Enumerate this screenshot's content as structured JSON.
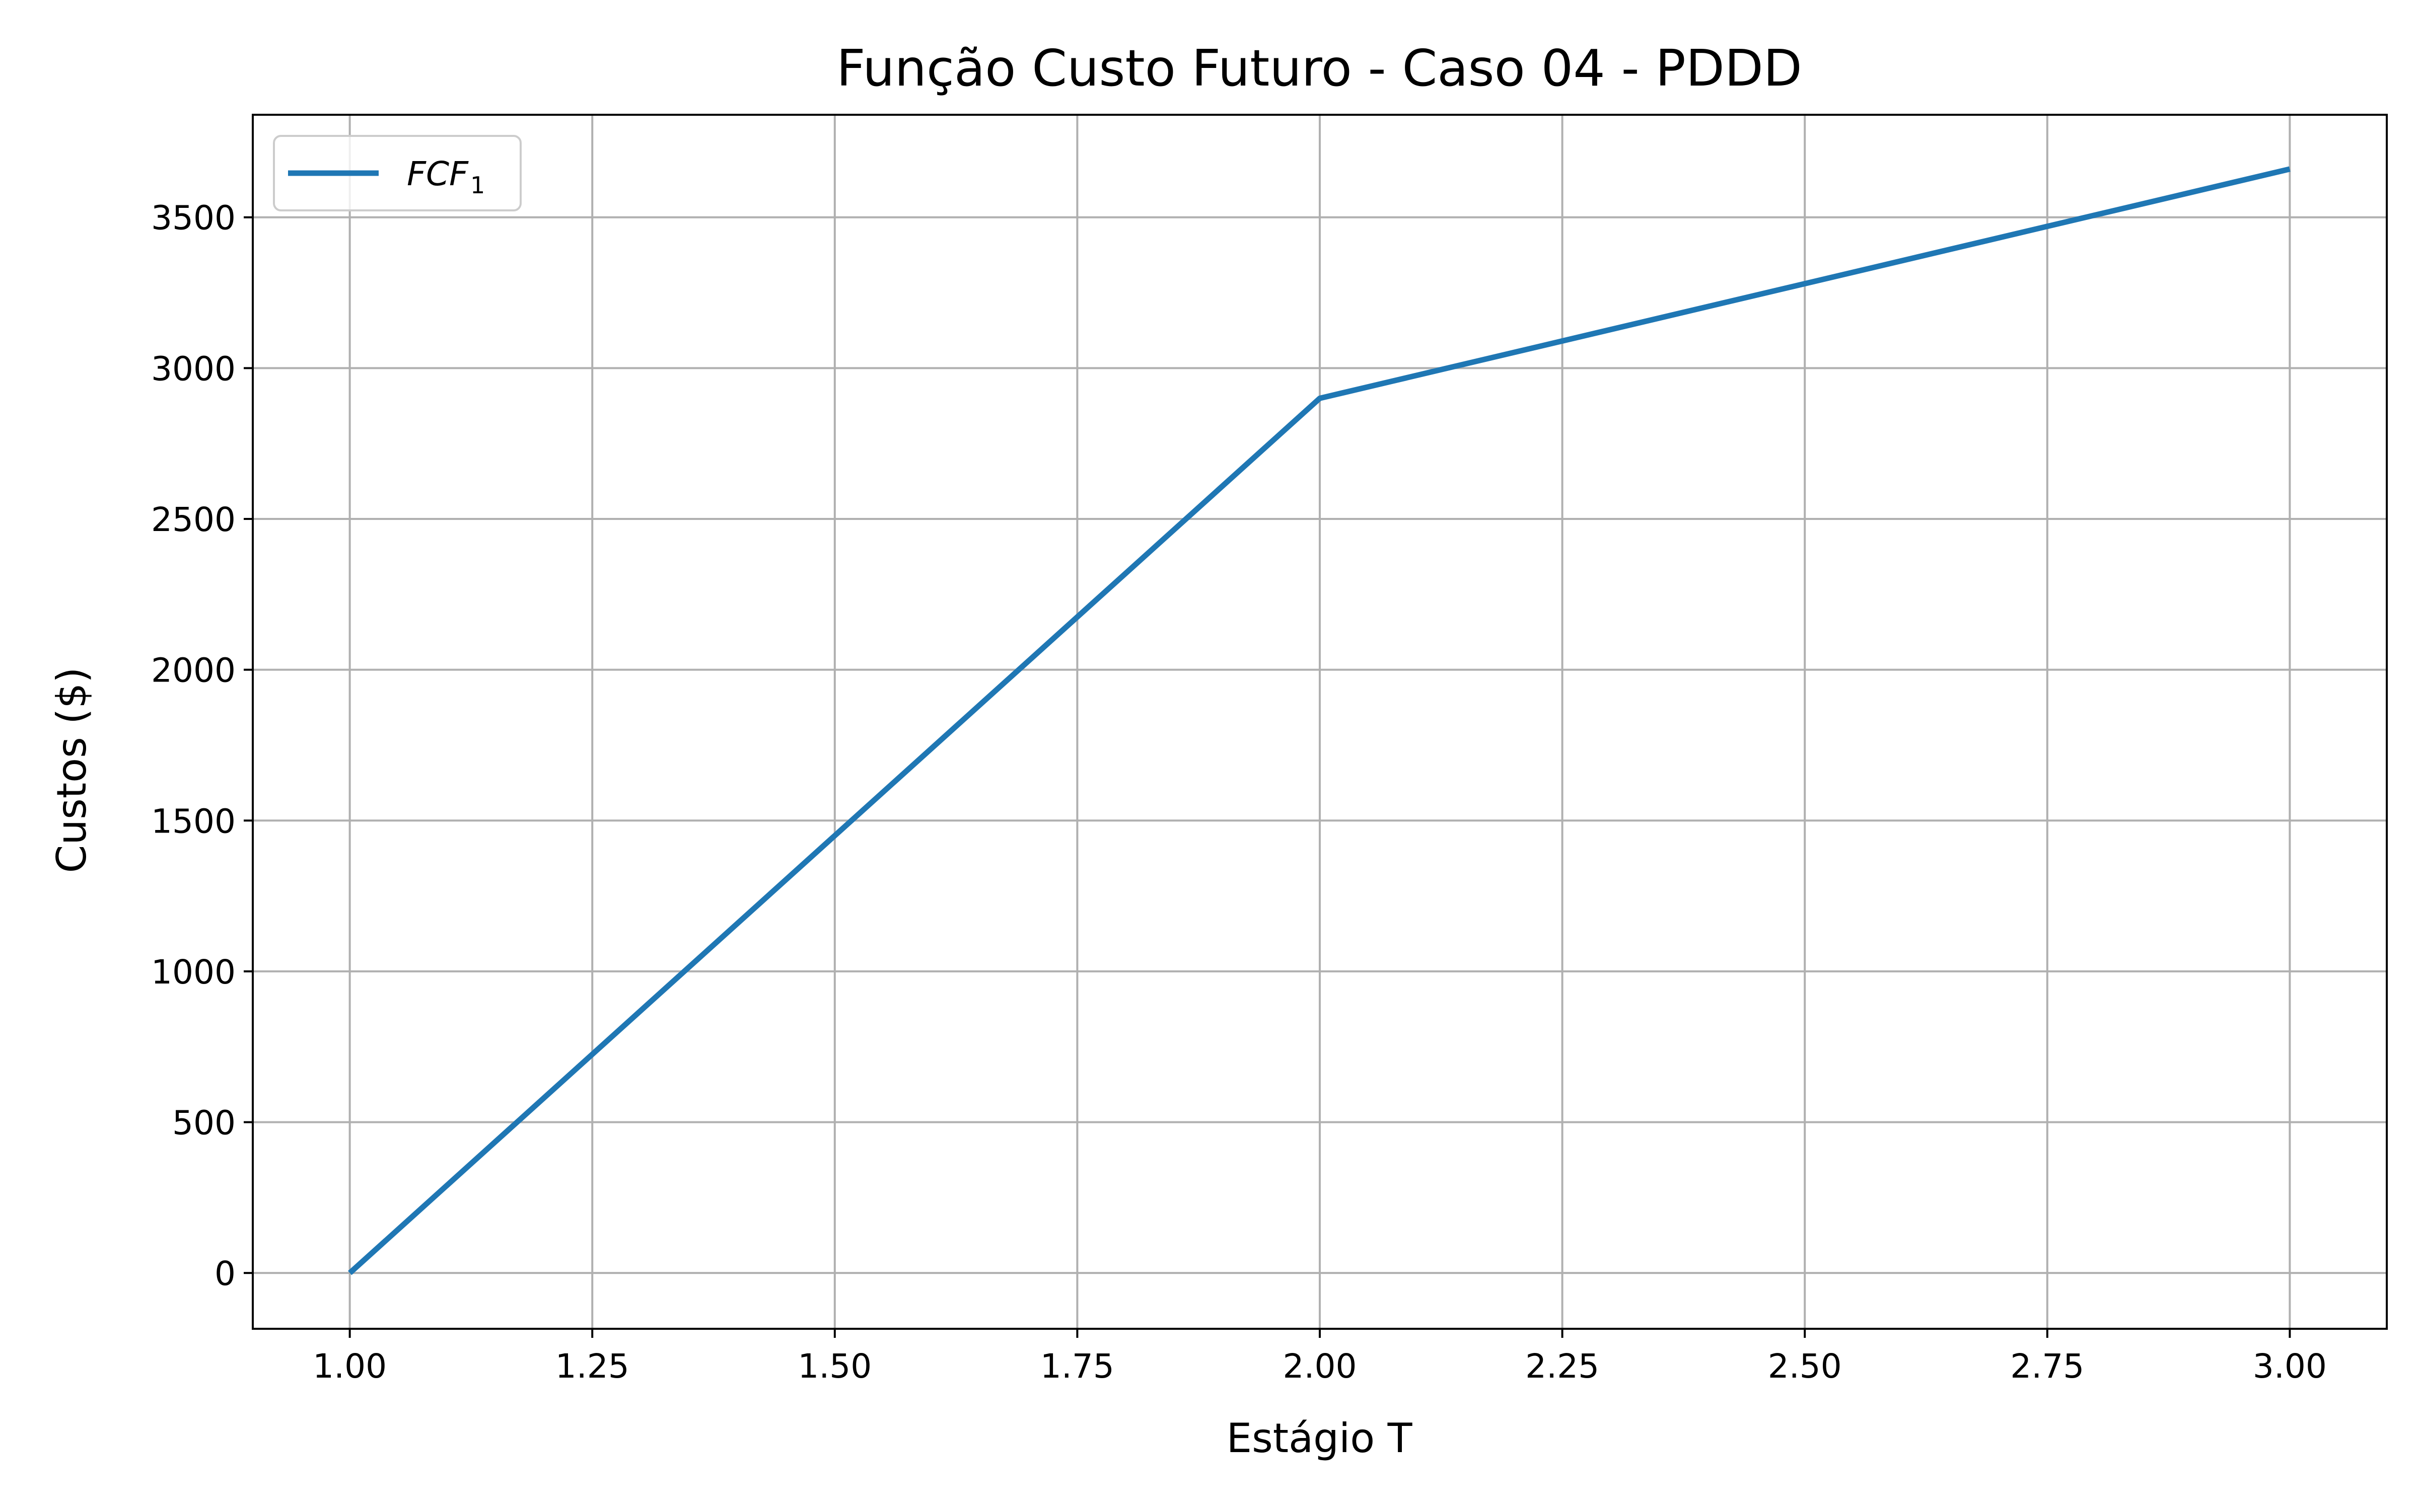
{
  "chart_data": {
    "type": "line",
    "title": "Função Custo Futuro - Caso 04 - PDDD",
    "xlabel": "Estágio T",
    "ylabel": "Custos ($)",
    "xlim": [
      0.9,
      3.1
    ],
    "ylim": [
      -185,
      3840
    ],
    "xticks": [
      1.0,
      1.25,
      1.5,
      1.75,
      2.0,
      2.25,
      2.5,
      2.75,
      3.0
    ],
    "xtick_labels": [
      "1.00",
      "1.25",
      "1.50",
      "1.75",
      "2.00",
      "2.25",
      "2.50",
      "2.75",
      "3.00"
    ],
    "yticks": [
      0,
      500,
      1000,
      1500,
      2000,
      2500,
      3000,
      3500
    ],
    "ytick_labels": [
      "0",
      "500",
      "1000",
      "1500",
      "2000",
      "2500",
      "3000",
      "3500"
    ],
    "grid": true,
    "legend_position": "top-left",
    "series": [
      {
        "name": "FCF",
        "name_subscript": "1",
        "color": "#1f77b4",
        "x": [
          1.0,
          2.0,
          3.0
        ],
        "y": [
          0,
          2900,
          3660
        ]
      }
    ]
  }
}
